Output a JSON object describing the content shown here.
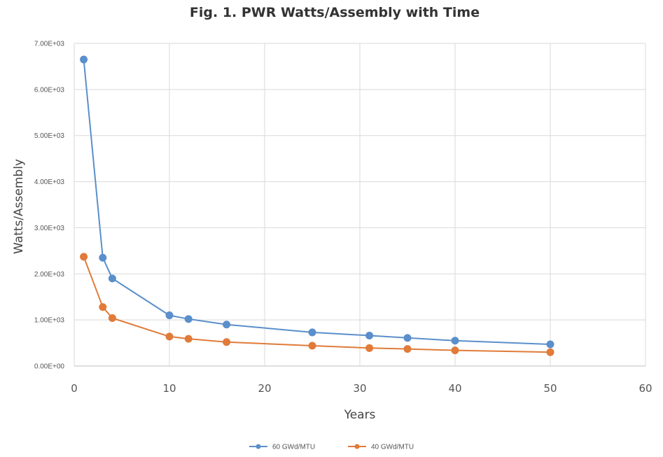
{
  "colors": {
    "series_60": "#5b8fcb",
    "series_40": "#e07b39"
  },
  "chart_data": {
    "type": "scatter",
    "title": "Fig. 1.  PWR Watts/Assembly  with Time",
    "xlabel": "Years",
    "ylabel": "Watts/Assembly",
    "xlim": [
      0,
      60
    ],
    "ylim": [
      0,
      7000
    ],
    "xticks": [
      0,
      10,
      20,
      30,
      40,
      50,
      60
    ],
    "xtick_labels": [
      "0",
      "10",
      "20",
      "30",
      "40",
      "50",
      "60"
    ],
    "yticks": [
      0,
      1000,
      2000,
      3000,
      4000,
      5000,
      6000,
      7000
    ],
    "ytick_labels": [
      "0.00E+00",
      "1.00E+03",
      "2.00E+03",
      "3.00E+03",
      "4.00E+03",
      "5.00E+03",
      "6.00E+03",
      "7.00E+03"
    ],
    "grid": true,
    "legend_position": "bottom",
    "series": [
      {
        "name": "60 GWd/MTU",
        "color": "#5b8fcb",
        "x": [
          1,
          3,
          4,
          10,
          12,
          16,
          25,
          31,
          35,
          40,
          50
        ],
        "y": [
          6650,
          2350,
          1900,
          1100,
          1020,
          900,
          730,
          660,
          610,
          550,
          470
        ]
      },
      {
        "name": "40 GWd/MTU",
        "color": "#e07b39",
        "x": [
          1,
          3,
          4,
          10,
          12,
          16,
          25,
          31,
          35,
          40,
          50
        ],
        "y": [
          2370,
          1280,
          1040,
          640,
          590,
          520,
          440,
          390,
          370,
          340,
          300
        ]
      }
    ]
  }
}
